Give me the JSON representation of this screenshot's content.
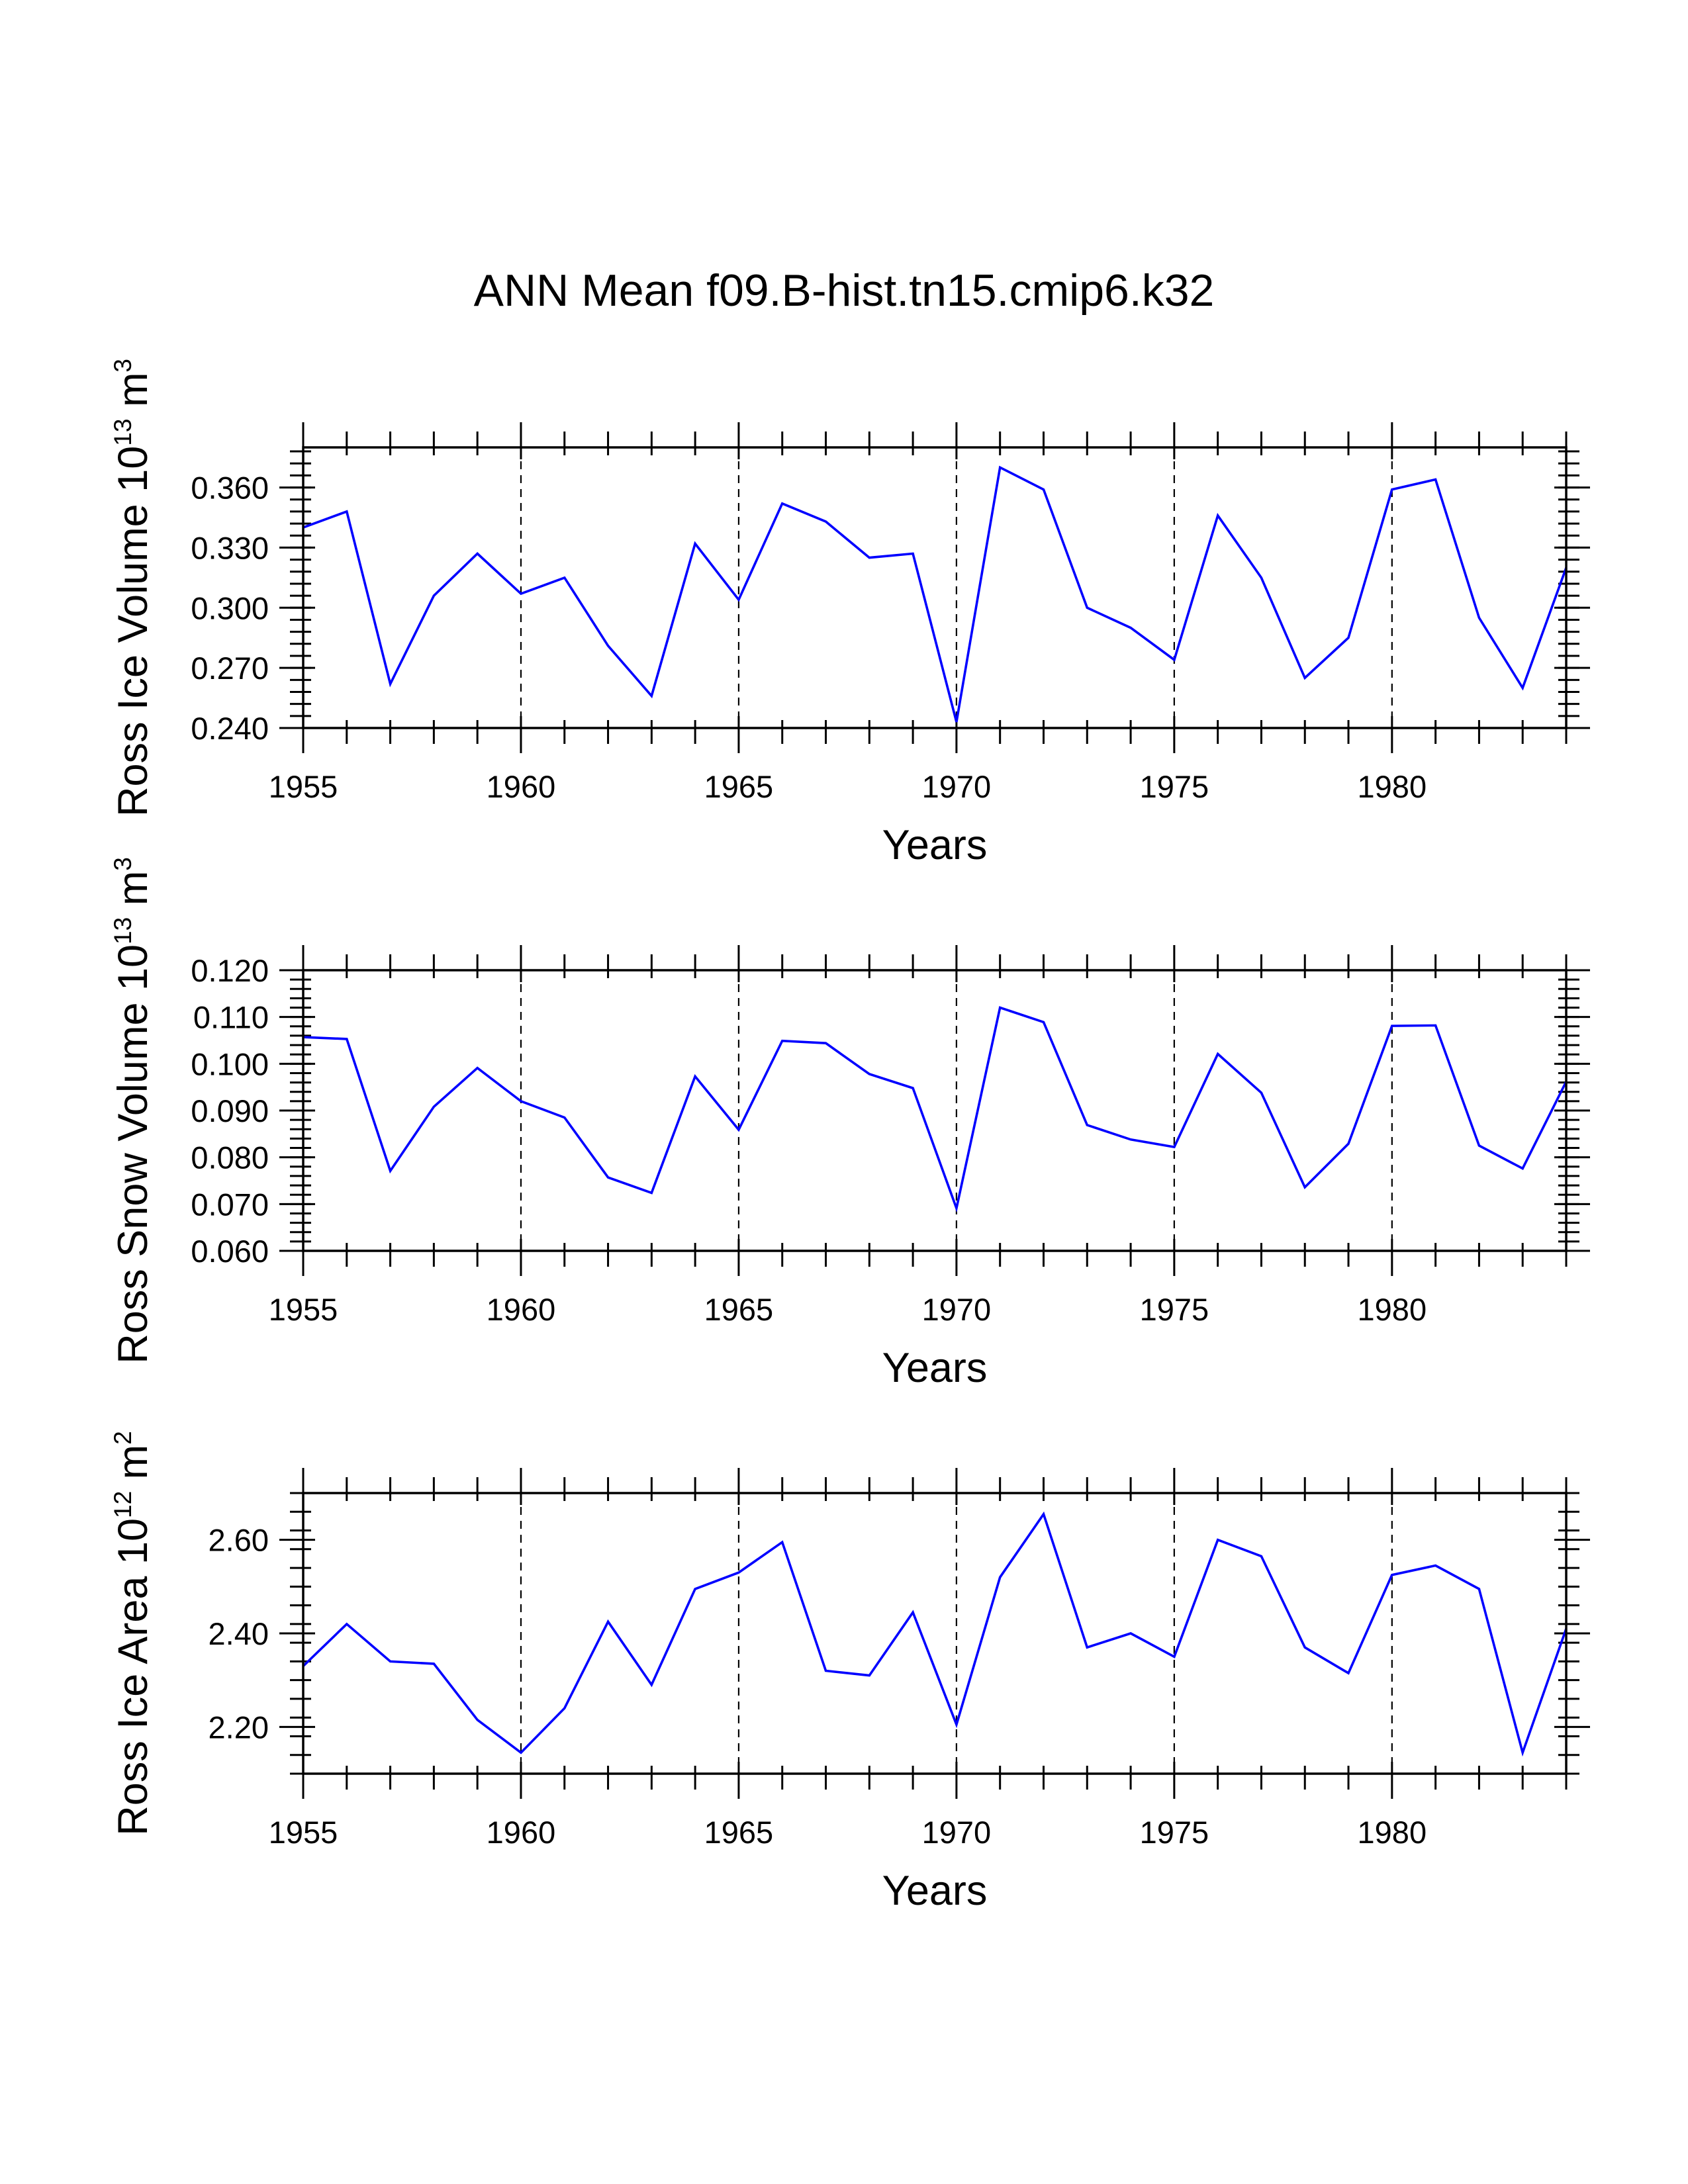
{
  "title": "ANN Mean f09.B-hist.tn15.cmip6.k32",
  "chart_data": [
    {
      "type": "line",
      "xlabel": "Years",
      "ylabel": {
        "text": "Ross Ice Volume 10",
        "exp": "13",
        "unit": " m",
        "unit_exp": "3"
      },
      "x": [
        1955,
        1956,
        1957,
        1958,
        1959,
        1960,
        1961,
        1962,
        1963,
        1964,
        1965,
        1966,
        1967,
        1968,
        1969,
        1970,
        1971,
        1972,
        1973,
        1974,
        1975,
        1976,
        1977,
        1978,
        1979,
        1980,
        1981,
        1982,
        1983,
        1984
      ],
      "values": [
        0.34,
        0.348,
        0.262,
        0.306,
        0.327,
        0.307,
        0.315,
        0.281,
        0.256,
        0.332,
        0.304,
        0.352,
        0.343,
        0.325,
        0.327,
        0.243,
        0.37,
        0.359,
        0.3,
        0.29,
        0.274,
        0.346,
        0.315,
        0.265,
        0.285,
        0.359,
        0.364,
        0.295,
        0.26,
        0.32
      ],
      "xlim": [
        1955,
        1984
      ],
      "ylim": [
        0.24,
        0.38
      ],
      "xticks": [
        1955,
        1960,
        1965,
        1970,
        1975,
        1980
      ],
      "xtick_labels": [
        "1955",
        "1960",
        "1965",
        "1970",
        "1975",
        "1980"
      ],
      "yticks": [
        0.24,
        0.27,
        0.3,
        0.33,
        0.36
      ],
      "ytick_labels": [
        "0.240",
        "0.270",
        "0.300",
        "0.330",
        "0.360"
      ],
      "yminor_step": 0.006,
      "dashed_gridlines_x": [
        1960,
        1965,
        1970,
        1975,
        1980
      ],
      "line_color": "#0000ff"
    },
    {
      "type": "line",
      "xlabel": "Years",
      "ylabel": {
        "text": "Ross Snow Volume 10",
        "exp": "13",
        "unit": " m",
        "unit_exp": "3"
      },
      "x": [
        1955,
        1956,
        1957,
        1958,
        1959,
        1960,
        1961,
        1962,
        1963,
        1964,
        1965,
        1966,
        1967,
        1968,
        1969,
        1970,
        1971,
        1972,
        1973,
        1974,
        1975,
        1976,
        1977,
        1978,
        1979,
        1980,
        1981,
        1982,
        1983,
        1984
      ],
      "values": [
        0.1057,
        0.1053,
        0.0771,
        0.0908,
        0.0991,
        0.092,
        0.0885,
        0.0757,
        0.0724,
        0.0973,
        0.0859,
        0.1049,
        0.1044,
        0.0978,
        0.0948,
        0.0691,
        0.112,
        0.1089,
        0.0869,
        0.0838,
        0.0822,
        0.1021,
        0.0938,
        0.0736,
        0.0829,
        0.1081,
        0.1082,
        0.0825,
        0.0776,
        0.0962
      ],
      "xlim": [
        1955,
        1984
      ],
      "ylim": [
        0.06,
        0.12
      ],
      "xticks": [
        1955,
        1960,
        1965,
        1970,
        1975,
        1980
      ],
      "xtick_labels": [
        "1955",
        "1960",
        "1965",
        "1970",
        "1975",
        "1980"
      ],
      "yticks": [
        0.06,
        0.07,
        0.08,
        0.09,
        0.1,
        0.11,
        0.12
      ],
      "ytick_labels": [
        "0.060",
        "0.070",
        "0.080",
        "0.090",
        "0.100",
        "0.110",
        "0.120"
      ],
      "yminor_step": 0.002,
      "dashed_gridlines_x": [
        1960,
        1965,
        1970,
        1975,
        1980
      ],
      "line_color": "#0000ff"
    },
    {
      "type": "line",
      "xlabel": "Years",
      "ylabel": {
        "text": "Ross Ice Area 10",
        "exp": "12",
        "unit": " m",
        "unit_exp": "2"
      },
      "x": [
        1955,
        1956,
        1957,
        1958,
        1959,
        1960,
        1961,
        1962,
        1963,
        1964,
        1965,
        1966,
        1967,
        1968,
        1969,
        1970,
        1971,
        1972,
        1973,
        1974,
        1975,
        1976,
        1977,
        1978,
        1979,
        1980,
        1981,
        1982,
        1983,
        1984
      ],
      "values": [
        2.33,
        2.42,
        2.34,
        2.335,
        2.215,
        2.145,
        2.24,
        2.425,
        2.29,
        2.495,
        2.53,
        2.595,
        2.32,
        2.31,
        2.445,
        2.205,
        2.52,
        2.655,
        2.37,
        2.4,
        2.35,
        2.6,
        2.565,
        2.37,
        2.315,
        2.525,
        2.545,
        2.495,
        2.145,
        2.41
      ],
      "xlim": [
        1955,
        1984
      ],
      "ylim": [
        2.1,
        2.7
      ],
      "xticks": [
        1955,
        1960,
        1965,
        1970,
        1975,
        1980
      ],
      "xtick_labels": [
        "1955",
        "1960",
        "1965",
        "1970",
        "1975",
        "1980"
      ],
      "yticks": [
        2.2,
        2.4,
        2.6
      ],
      "ytick_labels": [
        "2.20",
        "2.40",
        "2.60"
      ],
      "yminor_step": 0.04,
      "dashed_gridlines_x": [
        1960,
        1965,
        1970,
        1975,
        1980
      ],
      "line_color": "#0000ff"
    }
  ]
}
